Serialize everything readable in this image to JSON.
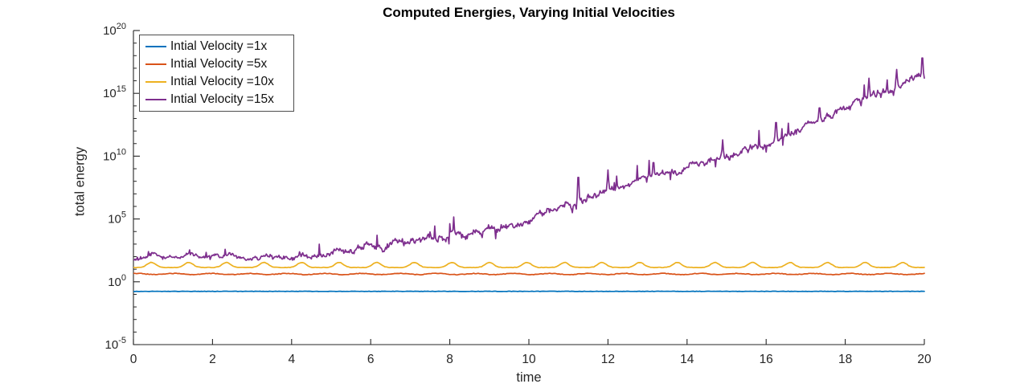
{
  "chart_data": {
    "type": "line",
    "title": "Computed Energies, Varying Initial Velocities",
    "xlabel": "time",
    "ylabel": "total energy",
    "x_axis": {
      "min": 0,
      "max": 20,
      "ticks": [
        0,
        2,
        4,
        6,
        8,
        10,
        12,
        14,
        16,
        18,
        20
      ]
    },
    "y_axis": {
      "scale": "log10",
      "min_exp": -5,
      "max_exp": 20,
      "tick_exponents": [
        -5,
        0,
        5,
        10,
        15,
        20
      ],
      "tick_label_base": "10",
      "minor_ticks_every_decade": true
    },
    "legend": {
      "position": "top-left",
      "border": true
    },
    "grid": false,
    "series": [
      {
        "label": "Intial Velocity =1x",
        "color": "#0072BD",
        "model": "const",
        "log10_mean": -0.76,
        "jitter": 0.015
      },
      {
        "label": "Intial Velocity =5x",
        "color": "#D95319",
        "model": "ripple",
        "log10_mean": 0.62,
        "ripple_amp": 0.045,
        "period": 0.95,
        "jitter": 0.025
      },
      {
        "label": "Intial Velocity =10x",
        "color": "#EDB120",
        "model": "bumps",
        "log10_base": 1.14,
        "bump_height": 0.4,
        "period": 0.95,
        "bump_offset": 0.12,
        "jitter": 0.018
      },
      {
        "label": "Intial Velocity =15x",
        "color": "#7E2F8E",
        "model": "growth",
        "log10_at_integer_t": [
          1.7,
          1.9,
          1.95,
          1.9,
          2.0,
          2.3,
          2.7,
          3.2,
          3.5,
          4.1,
          4.9,
          6.0,
          7.3,
          8.3,
          9.2,
          9.9,
          11.0,
          12.4,
          13.9,
          15.3,
          16.4
        ],
        "early_osc_amp": 0.45,
        "early_osc_period": 0.95,
        "noise": 0.3,
        "spikes": [
          {
            "t": 8.1,
            "peak": 4.9
          },
          {
            "t": 11.25,
            "peak": 9.1
          },
          {
            "t": 12.0,
            "peak": 8.9
          },
          {
            "t": 13.15,
            "peak": 9.9
          },
          {
            "t": 14.9,
            "peak": 11.3
          },
          {
            "t": 16.25,
            "peak": 13.2
          },
          {
            "t": 17.35,
            "peak": 14.2
          },
          {
            "t": 18.6,
            "peak": 16.2
          },
          {
            "t": 19.3,
            "peak": 16.9
          },
          {
            "t": 19.95,
            "peak": 18.4
          }
        ]
      }
    ],
    "colors": {
      "axis": "#262626",
      "tick_label": "#262626",
      "title": "#000000",
      "background": "#ffffff"
    }
  }
}
